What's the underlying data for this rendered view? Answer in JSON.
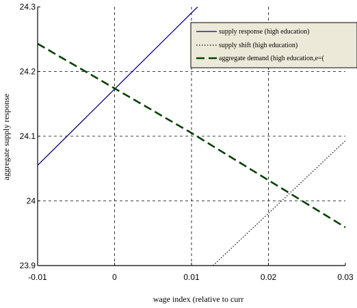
{
  "chart_data": {
    "type": "line",
    "title": "",
    "xlabel": "wage index (relative to curr",
    "ylabel": "aggregate supply response",
    "xlim": [
      -0.01,
      0.03
    ],
    "ylim": [
      23.9,
      24.3
    ],
    "x_ticks": [
      -0.01,
      0,
      0.01,
      0.02,
      0.03
    ],
    "x_tick_labels": [
      "-0.01",
      "0",
      "0.01",
      "0.02",
      "0.03"
    ],
    "y_ticks": [
      23.9,
      24.0,
      24.1,
      24.2,
      24.3
    ],
    "y_tick_labels": [
      "23.9",
      "24",
      "24.1",
      "24.2",
      "24.3"
    ],
    "grid": true,
    "legend_position": "top-right",
    "series": [
      {
        "name": "supply response (high education)",
        "style": "solid",
        "color": "#000080",
        "x": [
          -0.01,
          0.0108
        ],
        "y": [
          24.055,
          24.3
        ]
      },
      {
        "name": "supply shift (high education)",
        "style": "dotted",
        "color": "#000000",
        "x": [
          0.0128,
          0.03
        ],
        "y": [
          23.9,
          24.093
        ]
      },
      {
        "name": "aggregate demand (high education,e=(",
        "style": "dashed",
        "color": "#004000",
        "x": [
          -0.01,
          0.0,
          0.01,
          0.02,
          0.03
        ],
        "y": [
          24.243,
          24.174,
          24.105,
          24.032,
          23.959
        ]
      }
    ]
  }
}
